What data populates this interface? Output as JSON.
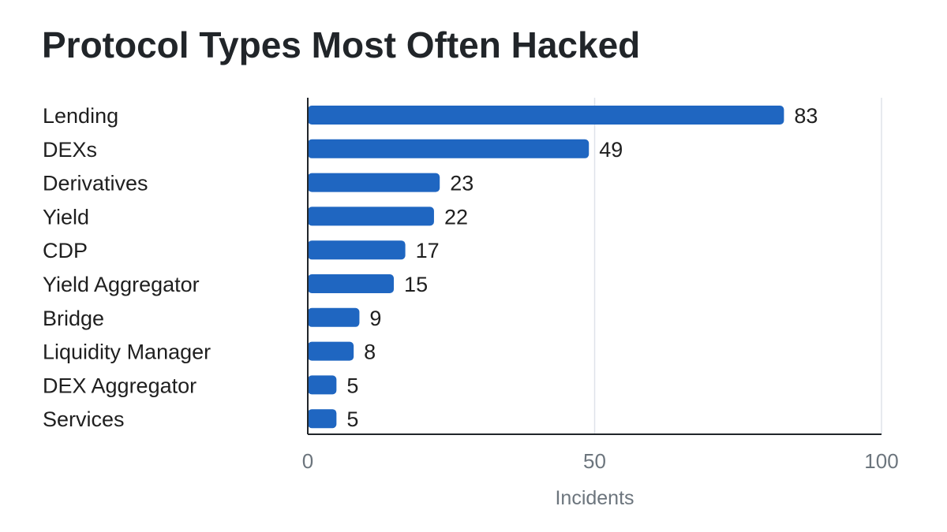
{
  "chart_data": {
    "type": "bar",
    "orientation": "horizontal",
    "title": "Protocol Types Most Often Hacked",
    "xlabel": "Incidents",
    "ylabel": "",
    "xlim": [
      0,
      100
    ],
    "xticks": [
      "0",
      "50",
      "100"
    ],
    "grid": true,
    "legend": "none",
    "bar_color": "#1f66c1",
    "categories": [
      "Lending",
      "DEXs",
      "Derivatives",
      "Yield",
      "CDP",
      "Yield Aggregator",
      "Bridge",
      "Liquidity Manager",
      "DEX Aggregator",
      "Services"
    ],
    "values": [
      83,
      49,
      23,
      22,
      17,
      15,
      9,
      8,
      5,
      5
    ]
  }
}
